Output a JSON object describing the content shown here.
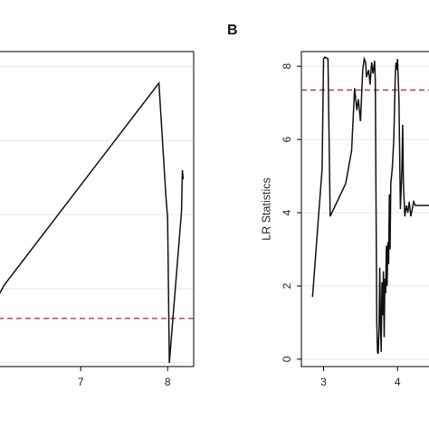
{
  "chart_data": [
    {
      "panel": "",
      "type": "line",
      "xlabel": "",
      "ylabel": "",
      "xlim": [
        6.05,
        8.3
      ],
      "ylim": [
        -0.1,
        8.4
      ],
      "x_ticks": [
        7,
        8
      ],
      "y_ticks": [],
      "grid": "horizontal",
      "threshold": {
        "value": 1.2,
        "color": "#b5394d",
        "style": "dashed"
      },
      "series": [
        {
          "color": "#111111",
          "x": [
            6.05,
            6.12,
            7.9,
            7.98,
            8.0,
            8.02,
            8.16,
            8.17,
            8.18
          ],
          "y": [
            1.8,
            2.1,
            7.55,
            4.5,
            3.9,
            0.0,
            4.1,
            5.2,
            4.95
          ]
        }
      ]
    },
    {
      "panel": "B",
      "type": "line",
      "xlabel": "",
      "ylabel": "LR Statistics",
      "xlim": [
        2.7,
        4.5
      ],
      "ylim": [
        -0.2,
        8.4
      ],
      "x_ticks": [
        3,
        4
      ],
      "y_ticks": [
        0,
        2,
        4,
        6,
        8
      ],
      "grid": "horizontal",
      "threshold": {
        "value": 7.35,
        "color": "#b5394d",
        "style": "dashed"
      },
      "series": [
        {
          "color": "#111111",
          "x": [
            2.85,
            2.98,
            3.0,
            3.02,
            3.06,
            3.09,
            3.3,
            3.38,
            3.42,
            3.45,
            3.47,
            3.5,
            3.53,
            3.55,
            3.57,
            3.58,
            3.61,
            3.63,
            3.65,
            3.67,
            3.69,
            3.7,
            3.71,
            3.72,
            3.73,
            3.74,
            3.75,
            3.76,
            3.77,
            3.78,
            3.79,
            3.8,
            3.81,
            3.82,
            3.83,
            3.84,
            3.85,
            3.86,
            3.87,
            3.88,
            3.89,
            3.9,
            3.91,
            3.93,
            3.95,
            3.97,
            3.98,
            3.99,
            4.0,
            4.02,
            4.04,
            4.06,
            4.07,
            4.08,
            4.1,
            4.12,
            4.14,
            4.16,
            4.18,
            4.2,
            4.22,
            4.24,
            4.5
          ],
          "y": [
            1.7,
            5.2,
            8.2,
            8.25,
            8.2,
            3.9,
            4.8,
            5.7,
            7.4,
            6.8,
            7.1,
            6.5,
            7.9,
            8.2,
            8.1,
            7.7,
            7.9,
            7.5,
            8.1,
            7.8,
            8.15,
            7.6,
            4.2,
            1.0,
            0.2,
            0.15,
            0.8,
            2.5,
            1.0,
            0.2,
            2.1,
            1.2,
            2.4,
            0.6,
            2.2,
            1.8,
            3.1,
            2.0,
            3.2,
            2.6,
            4.5,
            3.0,
            4.8,
            5.2,
            6.0,
            7.7,
            8.1,
            7.9,
            8.2,
            7.1,
            4.1,
            5.2,
            6.4,
            4.8,
            3.9,
            4.2,
            4.0,
            4.3,
            3.9,
            4.1,
            4.3,
            4.2,
            4.2
          ]
        }
      ]
    }
  ]
}
